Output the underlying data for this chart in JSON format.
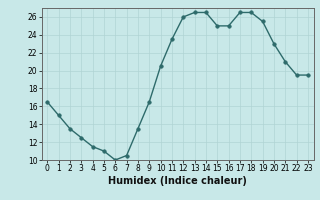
{
  "x": [
    0,
    1,
    2,
    3,
    4,
    5,
    6,
    7,
    8,
    9,
    10,
    11,
    12,
    13,
    14,
    15,
    16,
    17,
    18,
    19,
    20,
    21,
    22,
    23
  ],
  "y": [
    16.5,
    15,
    13.5,
    12.5,
    11.5,
    11,
    10,
    10.5,
    13.5,
    16.5,
    20.5,
    23.5,
    26,
    26.5,
    26.5,
    25,
    25,
    26.5,
    26.5,
    25.5,
    23,
    21,
    19.5,
    19.5
  ],
  "line_color": "#2e6b6b",
  "marker": "o",
  "marker_size": 2.5,
  "background_color": "#c8e8e8",
  "grid_color": "#b0d4d4",
  "xlabel": "Humidex (Indice chaleur)",
  "ylim": [
    10,
    27
  ],
  "yticks": [
    10,
    12,
    14,
    16,
    18,
    20,
    22,
    24,
    26
  ],
  "xticks": [
    0,
    1,
    2,
    3,
    4,
    5,
    6,
    7,
    8,
    9,
    10,
    11,
    12,
    13,
    14,
    15,
    16,
    17,
    18,
    19,
    20,
    21,
    22,
    23
  ],
  "tick_fontsize": 5.5,
  "xlabel_fontsize": 7
}
